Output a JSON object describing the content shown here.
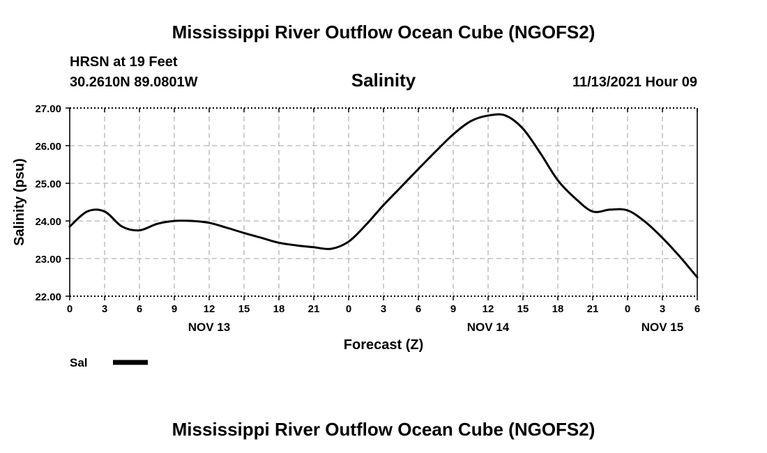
{
  "header": {
    "title": "Mississippi River Outflow Ocean Cube (NGOFS2)",
    "station": "HRSN at 19 Feet",
    "coords": "30.2610N  89.0801W",
    "variable": "Salinity",
    "datetime": "11/13/2021 Hour 09"
  },
  "footer": {
    "title": "Mississippi River Outflow Ocean Cube (NGOFS2)"
  },
  "legend": {
    "label": "Sal"
  },
  "colors": {
    "line": "#000000",
    "grid": "#b4b4b4",
    "axis": "#000000"
  },
  "chart_data": {
    "type": "line",
    "title": "Salinity",
    "xlabel": "Forecast (Z)",
    "ylabel": "Salinity (psu)",
    "xlim": [
      0,
      54
    ],
    "ylim": [
      22.0,
      27.0
    ],
    "y_ticks": [
      "22.00",
      "23.00",
      "24.00",
      "25.00",
      "26.00",
      "27.00"
    ],
    "x_tick_labels": [
      "0",
      "3",
      "6",
      "9",
      "12",
      "15",
      "18",
      "21",
      "0",
      "3",
      "6",
      "9",
      "12",
      "15",
      "18",
      "21",
      "0",
      "3",
      "6"
    ],
    "day_labels": [
      {
        "hour": 12,
        "text": "NOV 13"
      },
      {
        "hour": 36,
        "text": "NOV 14"
      },
      {
        "hour": 51,
        "text": "NOV 15"
      }
    ],
    "grid": true,
    "series": [
      {
        "name": "Sal",
        "x": [
          0,
          1.5,
          3,
          4.5,
          6,
          7.5,
          9,
          10.5,
          12,
          13.5,
          15,
          16.5,
          18,
          19.5,
          21,
          22.5,
          24,
          25.5,
          27,
          28.5,
          30,
          31.5,
          33,
          34.5,
          36,
          37.5,
          39,
          40.5,
          42,
          43.5,
          45,
          46.5,
          48,
          49.5,
          51,
          52.5,
          54
        ],
        "values": [
          23.85,
          24.25,
          24.25,
          23.85,
          23.75,
          23.92,
          24.0,
          24.0,
          23.95,
          23.82,
          23.68,
          23.55,
          23.42,
          23.35,
          23.3,
          23.26,
          23.45,
          23.9,
          24.42,
          24.9,
          25.38,
          25.85,
          26.3,
          26.65,
          26.8,
          26.8,
          26.45,
          25.8,
          25.08,
          24.6,
          24.25,
          24.3,
          24.28,
          23.98,
          23.55,
          23.05,
          22.5
        ]
      }
    ]
  }
}
